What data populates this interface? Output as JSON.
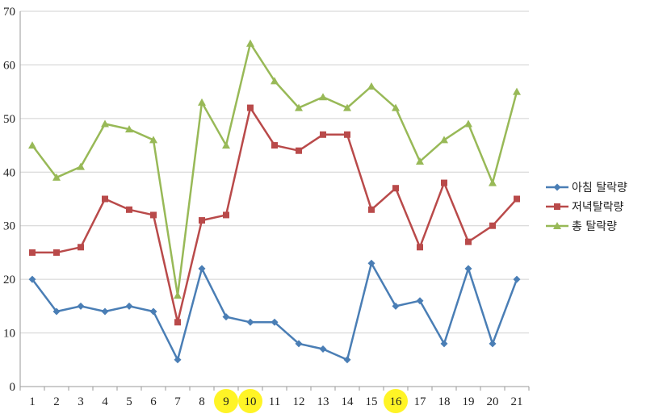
{
  "chart_data": {
    "type": "line",
    "title": "",
    "xlabel": "",
    "ylabel": "",
    "x": [
      "1",
      "2",
      "3",
      "4",
      "5",
      "6",
      "7",
      "8",
      "9",
      "10",
      "11",
      "12",
      "13",
      "14",
      "15",
      "16",
      "17",
      "18",
      "19",
      "20",
      "21"
    ],
    "highlighted_x": [
      "9",
      "10",
      "16"
    ],
    "ylim": [
      0,
      70
    ],
    "yticks": [
      "0",
      "10",
      "20",
      "30",
      "40",
      "50",
      "60",
      "70"
    ],
    "grid": "horizontal",
    "legend_position": "right",
    "series": [
      {
        "name": "아침 탈락량",
        "color": "#4a7eb5",
        "marker": "diamond",
        "values": [
          20,
          14,
          15,
          14,
          15,
          14,
          5,
          22,
          13,
          12,
          12,
          8,
          7,
          5,
          23,
          15,
          16,
          8,
          22,
          8,
          20
        ]
      },
      {
        "name": "저녁탈락량",
        "color": "#b94a4a",
        "marker": "square",
        "values": [
          25,
          25,
          26,
          35,
          33,
          32,
          12,
          31,
          32,
          52,
          45,
          44,
          47,
          47,
          33,
          37,
          26,
          38,
          27,
          30,
          35
        ]
      },
      {
        "name": "총 탈락량",
        "color": "#98b957",
        "marker": "triangle",
        "values": [
          45,
          39,
          41,
          49,
          48,
          46,
          17,
          53,
          45,
          64,
          57,
          52,
          54,
          52,
          56,
          52,
          42,
          46,
          49,
          38,
          55
        ]
      }
    ],
    "highlight_color": "#fff200"
  }
}
